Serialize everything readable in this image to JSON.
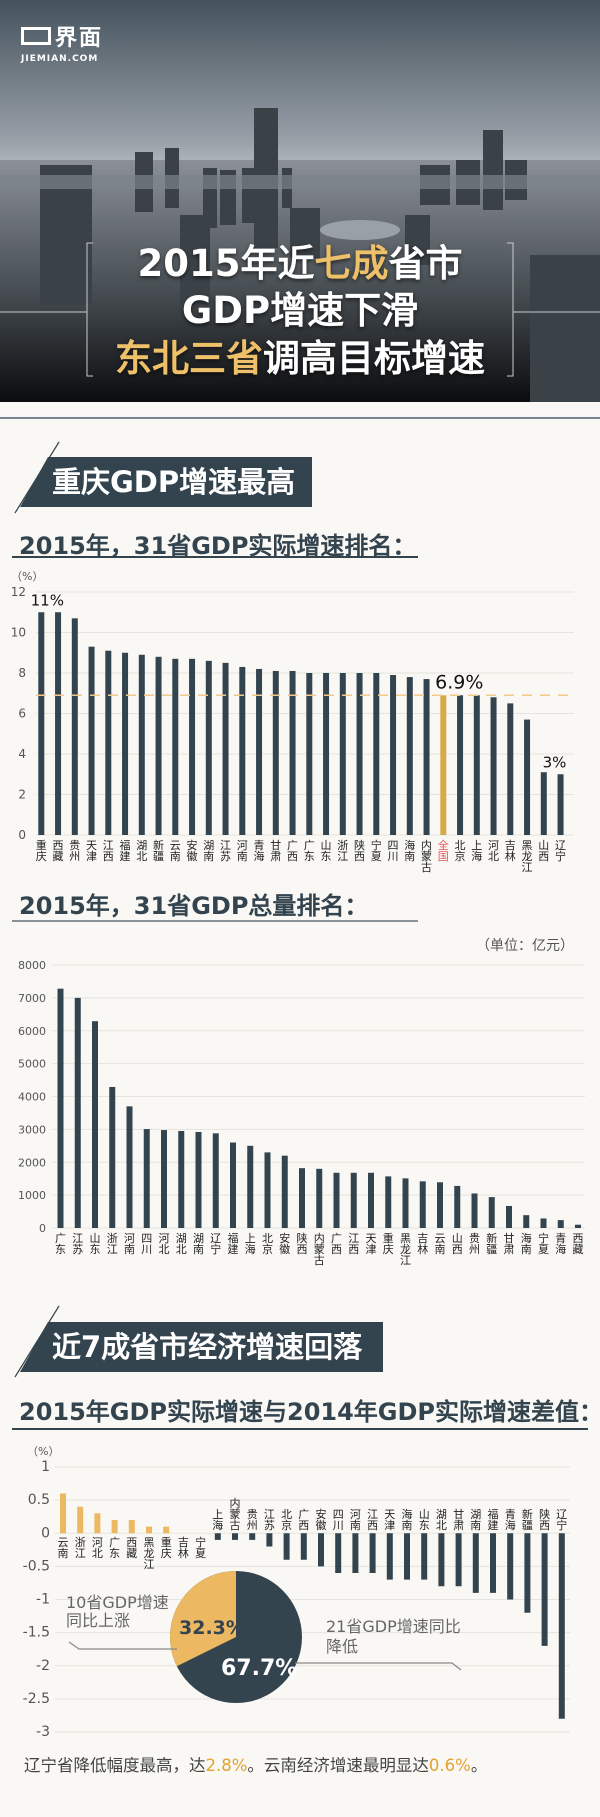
{
  "header": {
    "logo_cn": "界面",
    "logo_en": "JIEMIAN.COM",
    "title": {
      "line1": [
        "2015年近",
        "七成",
        "省市"
      ],
      "line2": "GDP增速下滑",
      "line3": [
        "东北三省",
        "调高目标增速"
      ]
    }
  },
  "sections": [
    {
      "banner": "重庆GDP增速最高"
    },
    {
      "banner": "近7成省市经济增速回落"
    }
  ],
  "subtitles": {
    "growth": "2015年，31省GDP实际增速排名：",
    "total": "2015年，31省GDP总量排名：",
    "diff": "2015年GDP实际增速与2014年GDP实际增速差值："
  },
  "unit_note": "（单位：亿元）",
  "footer": {
    "part1": "辽宁省降低幅度最高，达",
    "num1": "2.8%",
    "part2": "。云南经济增速最明显达",
    "num2": "0.6%",
    "part3": "。"
  },
  "colors": {
    "bar": "#34444f",
    "national": "#d4aa4a",
    "national_label": "#e8555a",
    "rise": "#ecb862",
    "avg_line": "#f2c88a",
    "grid": "#e6e4de"
  },
  "chart_data": [
    {
      "type": "bar",
      "title": "2015年，31省GDP实际增速排名：",
      "ylabel": "（%）",
      "ylim": [
        0,
        12
      ],
      "yticks": [
        0,
        2,
        4,
        6,
        8,
        10,
        12
      ],
      "grid": true,
      "categories": [
        "重庆",
        "西藏",
        "贵州",
        "天津",
        "江西",
        "福建",
        "湖北",
        "新疆",
        "云南",
        "安徽",
        "湖南",
        "江苏",
        "河南",
        "青海",
        "甘肃",
        "广西",
        "广东",
        "山东",
        "浙江",
        "陕西",
        "宁夏",
        "四川",
        "海南",
        "内蒙古",
        "全国",
        "北京",
        "上海",
        "河北",
        "吉林",
        "黑龙江",
        "山西",
        "辽宁"
      ],
      "values": [
        11,
        11,
        10.7,
        9.3,
        9.1,
        9.0,
        8.9,
        8.8,
        8.7,
        8.7,
        8.6,
        8.5,
        8.3,
        8.2,
        8.1,
        8.1,
        8.0,
        8.0,
        8.0,
        8.0,
        8.0,
        7.9,
        7.8,
        7.7,
        6.9,
        6.9,
        6.9,
        6.8,
        6.5,
        5.7,
        3.1,
        3.0
      ],
      "highlight_category": "全国",
      "reference_line": 6.9,
      "annotations": [
        {
          "category": "重庆",
          "text": "11%"
        },
        {
          "category": "全国",
          "text": "6.9%"
        },
        {
          "category": "辽宁",
          "text": "3%"
        }
      ]
    },
    {
      "type": "bar",
      "title": "2015年，31省GDP总量排名：",
      "ylabel": "（单位：亿元）",
      "ylim": [
        0,
        8000
      ],
      "yticks": [
        0,
        1000,
        2000,
        3000,
        4000,
        5000,
        6000,
        7000,
        8000
      ],
      "grid": true,
      "categories": [
        "广东",
        "江苏",
        "山东",
        "浙江",
        "河南",
        "四川",
        "河北",
        "湖北",
        "湖南",
        "辽宁",
        "福建",
        "上海",
        "北京",
        "安徽",
        "陕西",
        "内蒙古",
        "广西",
        "江西",
        "天津",
        "重庆",
        "黑龙江",
        "吉林",
        "云南",
        "山西",
        "贵州",
        "新疆",
        "甘肃",
        "海南",
        "宁夏",
        "青海",
        "西藏"
      ],
      "values": [
        7280,
        7000,
        6290,
        4290,
        3700,
        3010,
        2980,
        2950,
        2920,
        2880,
        2600,
        2500,
        2300,
        2200,
        1820,
        1800,
        1680,
        1680,
        1680,
        1570,
        1510,
        1420,
        1390,
        1280,
        1050,
        940,
        670,
        390,
        290,
        240,
        100
      ]
    },
    {
      "type": "bar",
      "title": "2015年GDP实际增速与2014年GDP实际增速差值：",
      "ylabel": "（%）",
      "ylim": [
        -3,
        1
      ],
      "yticks": [
        1,
        0.5,
        0,
        -0.5,
        -1,
        -1.5,
        -2,
        -2.5,
        -3
      ],
      "grid": true,
      "categories": [
        "云南",
        "浙江",
        "河北",
        "广东",
        "西藏",
        "黑龙江",
        "重庆",
        "吉林",
        "宁夏",
        "上海",
        "内蒙古",
        "贵州",
        "江苏",
        "北京",
        "广西",
        "安徽",
        "四川",
        "河南",
        "江西",
        "天津",
        "海南",
        "山东",
        "湖北",
        "甘肃",
        "湖南",
        "福建",
        "青海",
        "新疆",
        "陕西",
        "辽宁"
      ],
      "values": [
        0.6,
        0.4,
        0.3,
        0.2,
        0.2,
        0.1,
        0.1,
        0,
        0,
        -0.1,
        -0.1,
        -0.1,
        -0.2,
        -0.4,
        -0.4,
        -0.5,
        -0.6,
        -0.6,
        -0.6,
        -0.7,
        -0.7,
        -0.7,
        -0.8,
        -0.8,
        -0.9,
        -0.9,
        -1.0,
        -1.2,
        -1.7,
        -2.8
      ],
      "pie": {
        "type": "pie",
        "slices": [
          {
            "label": "10省GDP增速同比上涨",
            "value": 32.3,
            "text": "32.3%"
          },
          {
            "label": "21省GDP增速同比降低",
            "value": 67.7,
            "text": "67.7%"
          }
        ],
        "label_lines": {
          "rise": [
            "10省GDP增速",
            "同比上涨"
          ],
          "fall": [
            "21省GDP增速同比",
            "降低"
          ]
        }
      }
    }
  ]
}
